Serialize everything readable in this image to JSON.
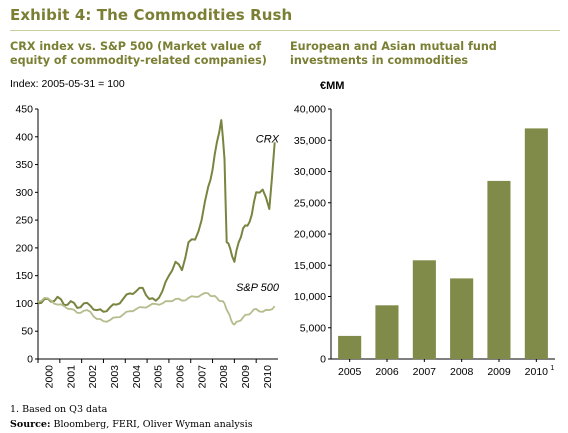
{
  "header": {
    "title": "Exhibit 4: The Commodities Rush"
  },
  "left_panel": {
    "title_line1": "CRX index vs. S&P 500  (Market value of",
    "title_line2": "equity of commodity-related companies)",
    "subtitle": "Index: 2005-05-31 = 100"
  },
  "right_panel": {
    "title_line1": "European and Asian mutual fund",
    "title_line2": "investments in commodities",
    "unit": "€MM"
  },
  "footer": {
    "footnote": "1. Based on Q3 data",
    "source_label": "Source:",
    "source_text": " Bloomberg, FERI, Oliver Wyman analysis"
  },
  "colors": {
    "crx": "#7a8440",
    "sp500": "#b5bc8d",
    "bar": "#808b4a",
    "title": "#7a7f33"
  },
  "chart_data": [
    {
      "type": "line",
      "ylim": [
        0,
        450
      ],
      "yticks": [
        0,
        50,
        100,
        150,
        200,
        250,
        300,
        350,
        400,
        450
      ],
      "xlim": [
        2000,
        2011
      ],
      "xticks": [
        "2000",
        "2001",
        "2002",
        "2003",
        "2004",
        "2005",
        "2006",
        "2007",
        "2008",
        "2009",
        "2010"
      ],
      "grid": false,
      "series": [
        {
          "name": "CRX",
          "x": [
            2000.0,
            2000.3,
            2000.6,
            2000.9,
            2001.2,
            2001.5,
            2001.8,
            2002.1,
            2002.4,
            2002.7,
            2003.0,
            2003.3,
            2003.6,
            2003.9,
            2004.2,
            2004.5,
            2004.8,
            2005.1,
            2005.4,
            2005.7,
            2006.0,
            2006.3,
            2006.6,
            2006.9,
            2007.2,
            2007.5,
            2007.8,
            2008.0,
            2008.2,
            2008.4,
            2008.55,
            2008.65,
            2008.8,
            2009.0,
            2009.2,
            2009.4,
            2009.6,
            2009.8,
            2010.0,
            2010.3,
            2010.6,
            2010.85
          ],
          "values": [
            100,
            108,
            103,
            112,
            97,
            104,
            92,
            100,
            96,
            88,
            85,
            93,
            98,
            108,
            118,
            122,
            128,
            108,
            105,
            122,
            150,
            175,
            160,
            210,
            215,
            250,
            310,
            340,
            390,
            430,
            360,
            210,
            200,
            175,
            210,
            235,
            240,
            260,
            300,
            305,
            270,
            390
          ]
        },
        {
          "name": "S&P 500",
          "x": [
            2000.0,
            2000.3,
            2000.6,
            2000.9,
            2001.2,
            2001.5,
            2001.8,
            2002.1,
            2002.4,
            2002.7,
            2003.0,
            2003.3,
            2003.6,
            2003.9,
            2004.2,
            2004.5,
            2004.8,
            2005.1,
            2005.4,
            2005.7,
            2006.0,
            2006.3,
            2006.6,
            2006.9,
            2007.2,
            2007.5,
            2007.8,
            2008.0,
            2008.2,
            2008.4,
            2008.55,
            2008.7,
            2008.85,
            2009.0,
            2009.2,
            2009.4,
            2009.6,
            2009.8,
            2010.0,
            2010.3,
            2010.6,
            2010.85
          ],
          "values": [
            103,
            110,
            105,
            98,
            95,
            90,
            83,
            87,
            85,
            72,
            68,
            70,
            75,
            80,
            86,
            90,
            93,
            96,
            99,
            100,
            104,
            108,
            105,
            110,
            112,
            116,
            118,
            113,
            110,
            104,
            100,
            85,
            70,
            62,
            68,
            75,
            80,
            85,
            90,
            85,
            88,
            95
          ]
        }
      ]
    },
    {
      "type": "bar",
      "categories": [
        "2005",
        "2006",
        "2007",
        "2008",
        "2009",
        "2010"
      ],
      "category_superscripts": [
        "",
        "",
        "",
        "",
        "",
        "1"
      ],
      "values": [
        3700,
        8600,
        15800,
        12900,
        28500,
        36900
      ],
      "ylim": [
        0,
        40000
      ],
      "yticks": [
        "0",
        "5,000",
        "10,000",
        "15,000",
        "20,000",
        "25,000",
        "30,000",
        "35,000",
        "40,000"
      ],
      "grid": false
    }
  ]
}
